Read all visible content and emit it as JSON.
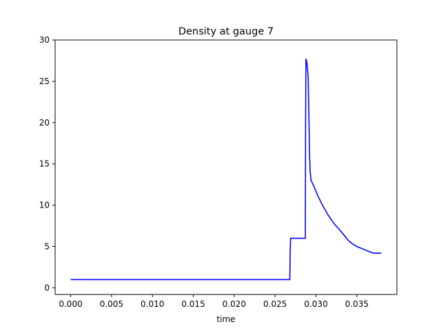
{
  "chart_data": {
    "type": "line",
    "title": "Density at gauge 7",
    "xlabel": "time",
    "ylabel": "",
    "xlim": [
      -0.0019,
      0.0399
    ],
    "ylim": [
      -0.8,
      30
    ],
    "xticks": [
      0.0,
      0.005,
      0.01,
      0.015,
      0.02,
      0.025,
      0.03,
      0.035
    ],
    "xtick_labels": [
      "0.000",
      "0.005",
      "0.010",
      "0.015",
      "0.020",
      "0.025",
      "0.030",
      "0.035"
    ],
    "yticks": [
      0,
      5,
      10,
      15,
      20,
      25,
      30
    ],
    "ytick_labels": [
      "0",
      "5",
      "10",
      "15",
      "20",
      "25",
      "30"
    ],
    "grid": false,
    "series": [
      {
        "color": "#0000ff",
        "x": [
          0.0,
          0.0268,
          0.02685,
          0.0269,
          0.0287,
          0.02873,
          0.02878,
          0.0289,
          0.02905,
          0.02915,
          0.02922,
          0.0293,
          0.0294,
          0.0297,
          0.0302,
          0.0308,
          0.0315,
          0.0322,
          0.033,
          0.0335,
          0.034,
          0.0345,
          0.035,
          0.0355,
          0.036,
          0.0365,
          0.037,
          0.0375,
          0.038
        ],
        "y": [
          1.0,
          1.0,
          4.5,
          6.0,
          6.0,
          20.0,
          27.7,
          27.2,
          25.5,
          20.0,
          16.0,
          14.0,
          13.0,
          12.4,
          11.2,
          10.0,
          8.8,
          7.8,
          6.9,
          6.3,
          5.7,
          5.3,
          5.0,
          4.8,
          4.6,
          4.4,
          4.2,
          4.2,
          4.2
        ]
      }
    ]
  }
}
